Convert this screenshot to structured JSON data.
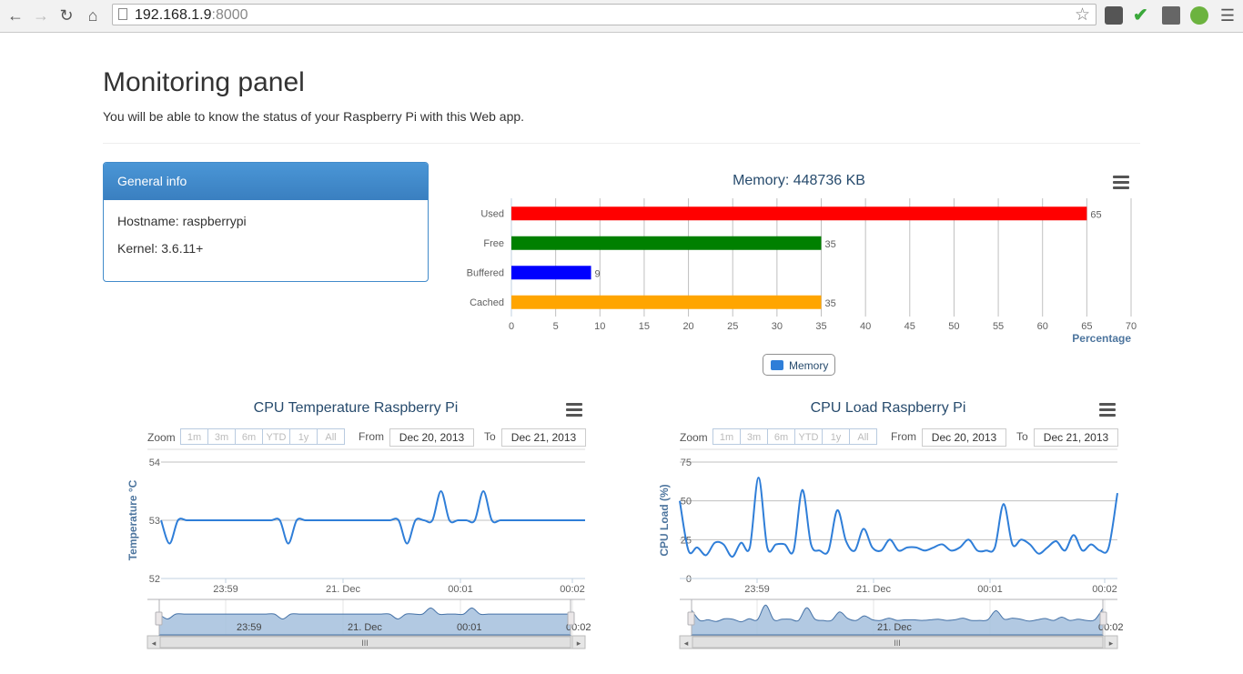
{
  "browser": {
    "url_host": "192.168.1.9",
    "url_port": ":8000"
  },
  "page": {
    "title": "Monitoring panel",
    "lead": "You will be able to know the status of your Raspberry Pi with this Web app."
  },
  "general_info": {
    "heading": "General info",
    "hostname": "Hostname: raspberrypi",
    "kernel": "Kernel: 3.6.11+"
  },
  "memory_chart": {
    "title": "Memory: 448736 KB",
    "legend": "Memory"
  },
  "chart_data": [
    {
      "type": "bar",
      "title": "Memory: 448736 KB",
      "categories": [
        "Used",
        "Free",
        "Buffered",
        "Cached"
      ],
      "values": [
        65,
        35,
        9,
        35
      ],
      "colors": [
        "#ff0000",
        "#008000",
        "#0000ff",
        "#ffa500"
      ],
      "xlabel": "Percentage",
      "xlim": [
        0,
        70
      ],
      "ticks": [
        "0",
        "5",
        "10",
        "15",
        "20",
        "25",
        "30",
        "35",
        "40",
        "45",
        "50",
        "55",
        "60",
        "65",
        "70"
      ],
      "legend": "Memory",
      "grid": true
    },
    {
      "type": "line",
      "title": "CPU Temperature Raspberry Pi",
      "ylabel": "Temperature °C",
      "yticks": [
        "52",
        "53",
        "54"
      ],
      "ylim": [
        52,
        54
      ],
      "xticks": [
        "23:59",
        "21. Dec",
        "00:01",
        "00:02"
      ],
      "navigator_ticks": [
        "23:59",
        "21. Dec",
        "00:01",
        "00:02"
      ],
      "x_index": [
        0,
        2,
        4,
        6,
        8,
        10,
        12,
        14,
        16,
        18,
        20,
        22,
        24,
        26,
        28,
        30,
        32,
        34,
        36,
        38,
        40,
        42,
        44,
        46,
        48,
        50,
        52,
        54,
        56,
        58,
        60,
        62,
        64,
        66,
        68,
        70,
        72,
        74,
        76,
        78,
        80,
        82,
        84,
        86,
        88,
        90,
        92,
        94,
        96,
        98,
        100
      ],
      "values": [
        53,
        52.6,
        53,
        53,
        53,
        53,
        53,
        53,
        53,
        53,
        53,
        53,
        53,
        53,
        53,
        52.6,
        53,
        53,
        53,
        53,
        53,
        53,
        53,
        53,
        53,
        53,
        53,
        53,
        53,
        52.6,
        53,
        53,
        53,
        53.5,
        53,
        53,
        53,
        53,
        53.5,
        53,
        53,
        53,
        53,
        53,
        53,
        53,
        53,
        53,
        53,
        53,
        53
      ]
    },
    {
      "type": "line",
      "title": "CPU Load Raspberry Pi",
      "ylabel": "CPU Load (%)",
      "yticks": [
        "0",
        "25",
        "50",
        "75"
      ],
      "ylim": [
        0,
        75
      ],
      "xticks": [
        "23:59",
        "21. Dec",
        "00:01",
        "00:02"
      ],
      "navigator_ticks": [
        "21. Dec",
        "00:02"
      ],
      "x_index": [
        0,
        2,
        4,
        6,
        8,
        10,
        12,
        14,
        16,
        18,
        20,
        22,
        24,
        26,
        28,
        30,
        32,
        34,
        36,
        38,
        40,
        42,
        44,
        46,
        48,
        50,
        52,
        54,
        56,
        58,
        60,
        62,
        64,
        66,
        68,
        70,
        72,
        74,
        76,
        78,
        80,
        82,
        84,
        86,
        88,
        90,
        92,
        94,
        96,
        98,
        100
      ],
      "values": [
        50,
        18,
        20,
        15,
        23,
        22,
        14,
        23,
        20,
        65,
        20,
        22,
        22,
        18,
        57,
        22,
        18,
        18,
        44,
        24,
        18,
        32,
        20,
        18,
        25,
        18,
        20,
        20,
        18,
        20,
        22,
        18,
        20,
        25,
        18,
        18,
        20,
        48,
        22,
        25,
        22,
        16,
        20,
        24,
        18,
        28,
        18,
        22,
        18,
        20,
        55
      ]
    }
  ],
  "cpu_temp": {
    "title": "CPU Temperature Raspberry Pi",
    "zoom_label": "Zoom",
    "zoom_buttons": [
      "1m",
      "3m",
      "6m",
      "YTD",
      "1y",
      "All"
    ],
    "from_label": "From",
    "from_value": "Dec 20, 2013",
    "to_label": "To",
    "to_value": "Dec 21, 2013"
  },
  "cpu_load": {
    "title": "CPU Load Raspberry Pi",
    "zoom_label": "Zoom",
    "zoom_buttons": [
      "1m",
      "3m",
      "6m",
      "YTD",
      "1y",
      "All"
    ],
    "from_label": "From",
    "from_value": "Dec 20, 2013",
    "to_label": "To",
    "to_value": "Dec 21, 2013"
  },
  "icons": {
    "back": "back-arrow-icon",
    "forward": "forward-arrow-icon",
    "reload": "reload-icon",
    "home": "home-icon",
    "bookmark": "star-icon",
    "menu": "hamburger-menu-icon"
  },
  "colors": {
    "series": "#2f7ed8",
    "axis_title": "#4d759e",
    "title": "#274b6d"
  }
}
